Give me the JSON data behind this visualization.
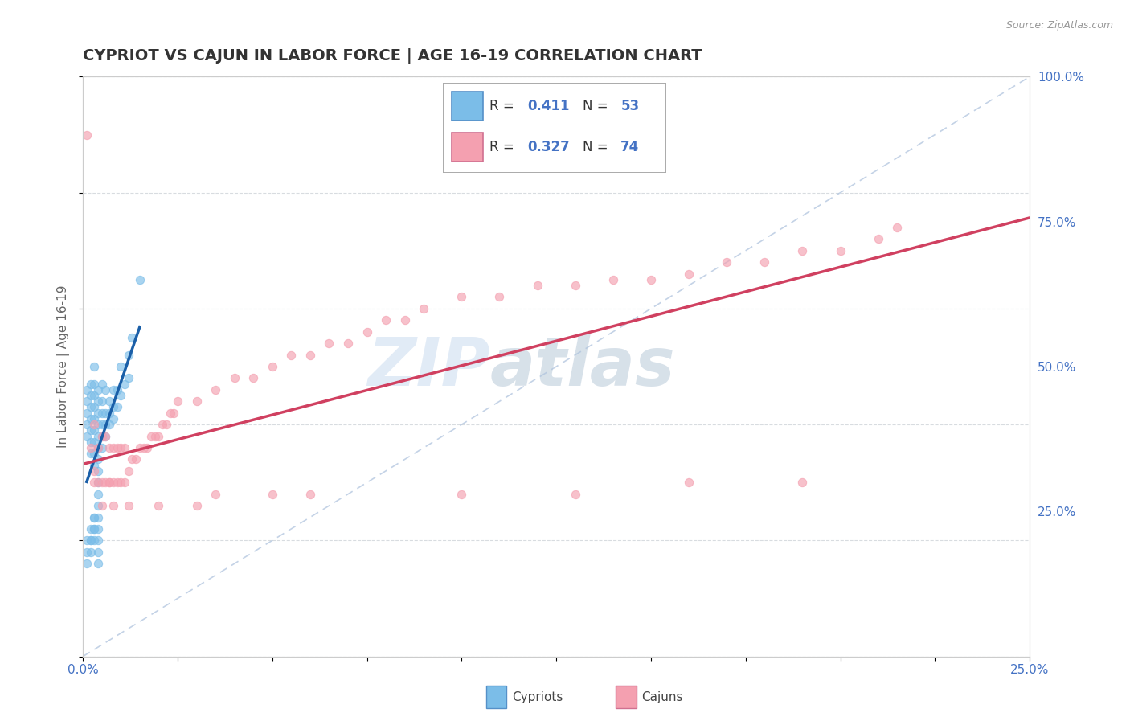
{
  "title": "CYPRIOT VS CAJUN IN LABOR FORCE | AGE 16-19 CORRELATION CHART",
  "source_text": "Source: ZipAtlas.com",
  "ylabel": "In Labor Force | Age 16-19",
  "xlim": [
    0.0,
    0.25
  ],
  "ylim": [
    0.0,
    1.0
  ],
  "xticks": [
    0.0,
    0.025,
    0.05,
    0.075,
    0.1,
    0.125,
    0.15,
    0.175,
    0.2,
    0.225,
    0.25
  ],
  "xticklabels": [
    "0.0%",
    "",
    "",
    "",
    "",
    "",
    "",
    "",
    "",
    "",
    "25.0%"
  ],
  "yticks_right": [
    0.25,
    0.5,
    0.75,
    1.0
  ],
  "yticklabels_right": [
    "25.0%",
    "50.0%",
    "75.0%",
    "100.0%"
  ],
  "cypriot_color": "#7bbde8",
  "cajun_color": "#f4a0b0",
  "cypriot_line_color": "#1a5fa8",
  "cajun_line_color": "#d04060",
  "watermark_zip": "ZIP",
  "watermark_atlas": "atlas",
  "background_color": "#ffffff",
  "grid_color": "#d8dce0",
  "diag_color": "#b0c4de",
  "cypriot_scatter_x": [
    0.001,
    0.001,
    0.001,
    0.001,
    0.001,
    0.002,
    0.002,
    0.002,
    0.002,
    0.002,
    0.002,
    0.002,
    0.003,
    0.003,
    0.003,
    0.003,
    0.003,
    0.003,
    0.003,
    0.003,
    0.003,
    0.004,
    0.004,
    0.004,
    0.004,
    0.004,
    0.004,
    0.004,
    0.005,
    0.005,
    0.005,
    0.005,
    0.005,
    0.005,
    0.006,
    0.006,
    0.006,
    0.006,
    0.007,
    0.007,
    0.007,
    0.008,
    0.008,
    0.008,
    0.009,
    0.009,
    0.01,
    0.01,
    0.011,
    0.012,
    0.012,
    0.013,
    0.015
  ],
  "cypriot_scatter_y": [
    0.38,
    0.4,
    0.42,
    0.44,
    0.46,
    0.35,
    0.37,
    0.39,
    0.41,
    0.43,
    0.45,
    0.47,
    0.33,
    0.35,
    0.37,
    0.39,
    0.41,
    0.43,
    0.45,
    0.47,
    0.5,
    0.34,
    0.36,
    0.38,
    0.4,
    0.42,
    0.44,
    0.46,
    0.36,
    0.38,
    0.4,
    0.42,
    0.44,
    0.47,
    0.38,
    0.4,
    0.42,
    0.46,
    0.4,
    0.42,
    0.44,
    0.41,
    0.43,
    0.46,
    0.43,
    0.46,
    0.45,
    0.5,
    0.47,
    0.48,
    0.52,
    0.55,
    0.65
  ],
  "cypriot_scatter_y_low": [
    0.16,
    0.18,
    0.2,
    0.2,
    0.22,
    0.18,
    0.2,
    0.22,
    0.24,
    0.2,
    0.22,
    0.24,
    0.16,
    0.18,
    0.2,
    0.22,
    0.24,
    0.26,
    0.28,
    0.3,
    0.32
  ],
  "cypriot_scatter_x_low": [
    0.001,
    0.001,
    0.001,
    0.002,
    0.002,
    0.002,
    0.002,
    0.003,
    0.003,
    0.003,
    0.003,
    0.003,
    0.004,
    0.004,
    0.004,
    0.004,
    0.004,
    0.004,
    0.004,
    0.004,
    0.004
  ],
  "cajun_scatter_x": [
    0.001,
    0.002,
    0.003,
    0.003,
    0.004,
    0.004,
    0.005,
    0.005,
    0.006,
    0.006,
    0.007,
    0.007,
    0.008,
    0.008,
    0.009,
    0.009,
    0.01,
    0.01,
    0.011,
    0.011,
    0.012,
    0.013,
    0.014,
    0.015,
    0.016,
    0.017,
    0.018,
    0.019,
    0.02,
    0.021,
    0.022,
    0.023,
    0.024,
    0.025,
    0.03,
    0.035,
    0.04,
    0.045,
    0.05,
    0.055,
    0.06,
    0.065,
    0.07,
    0.075,
    0.08,
    0.085,
    0.09,
    0.1,
    0.11,
    0.12,
    0.13,
    0.14,
    0.15,
    0.16,
    0.17,
    0.18,
    0.19,
    0.2,
    0.21,
    0.215,
    0.005,
    0.008,
    0.012,
    0.02,
    0.03,
    0.035,
    0.05,
    0.06,
    0.1,
    0.13,
    0.16,
    0.19,
    0.003,
    0.007
  ],
  "cajun_scatter_y": [
    0.9,
    0.36,
    0.32,
    0.4,
    0.3,
    0.36,
    0.3,
    0.38,
    0.3,
    0.38,
    0.3,
    0.36,
    0.3,
    0.36,
    0.3,
    0.36,
    0.3,
    0.36,
    0.3,
    0.36,
    0.32,
    0.34,
    0.34,
    0.36,
    0.36,
    0.36,
    0.38,
    0.38,
    0.38,
    0.4,
    0.4,
    0.42,
    0.42,
    0.44,
    0.44,
    0.46,
    0.48,
    0.48,
    0.5,
    0.52,
    0.52,
    0.54,
    0.54,
    0.56,
    0.58,
    0.58,
    0.6,
    0.62,
    0.62,
    0.64,
    0.64,
    0.65,
    0.65,
    0.66,
    0.68,
    0.68,
    0.7,
    0.7,
    0.72,
    0.74,
    0.26,
    0.26,
    0.26,
    0.26,
    0.26,
    0.28,
    0.28,
    0.28,
    0.28,
    0.28,
    0.3,
    0.3,
    0.3,
    0.3
  ]
}
